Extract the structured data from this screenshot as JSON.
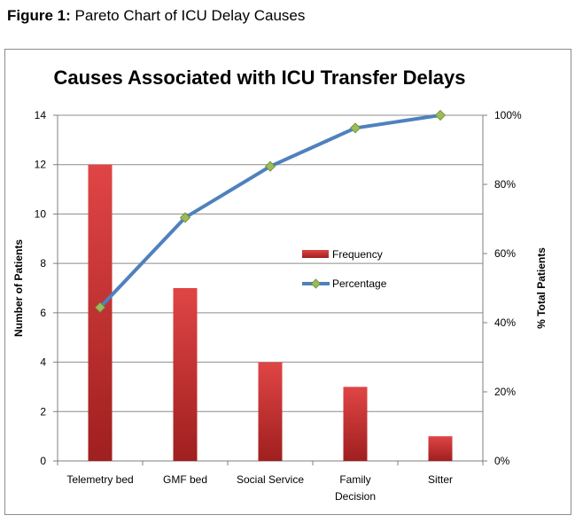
{
  "figure": {
    "label": "Figure 1:",
    "caption": "Pareto Chart of ICU Delay Causes"
  },
  "chart_data": {
    "type": "bar",
    "title": "Causes Associated with ICU Transfer Delays",
    "categories": [
      "Telemetry bed",
      "GMF bed",
      "Social Service",
      "Family Decision",
      "Sitter"
    ],
    "category_lines": [
      [
        "Telemetry bed"
      ],
      [
        "GMF bed"
      ],
      [
        "Social Service"
      ],
      [
        "Family",
        "Decision"
      ],
      [
        "Sitter"
      ]
    ],
    "series": [
      {
        "name": "Frequency",
        "type": "bar",
        "axis": "left",
        "values": [
          12,
          7,
          4,
          3,
          1
        ]
      },
      {
        "name": "Percentage",
        "type": "line",
        "axis": "right",
        "values": [
          44.4,
          70.4,
          85.2,
          96.3,
          100
        ]
      }
    ],
    "ylabel": "Number of Patients",
    "y2label": "% Total Patients",
    "ylim": [
      0,
      14
    ],
    "y2lim": [
      0,
      100
    ],
    "yticks": [
      "0",
      "2",
      "4",
      "6",
      "8",
      "10",
      "12",
      "14"
    ],
    "y2ticks": [
      "0%",
      "20%",
      "40%",
      "60%",
      "80%",
      "100%"
    ],
    "grid": true,
    "legend_position": "center-right",
    "colors": {
      "bar": "#c0302f",
      "bar_light": "#e04545",
      "line": "#4f81bd",
      "marker": "#9bbb59"
    }
  }
}
